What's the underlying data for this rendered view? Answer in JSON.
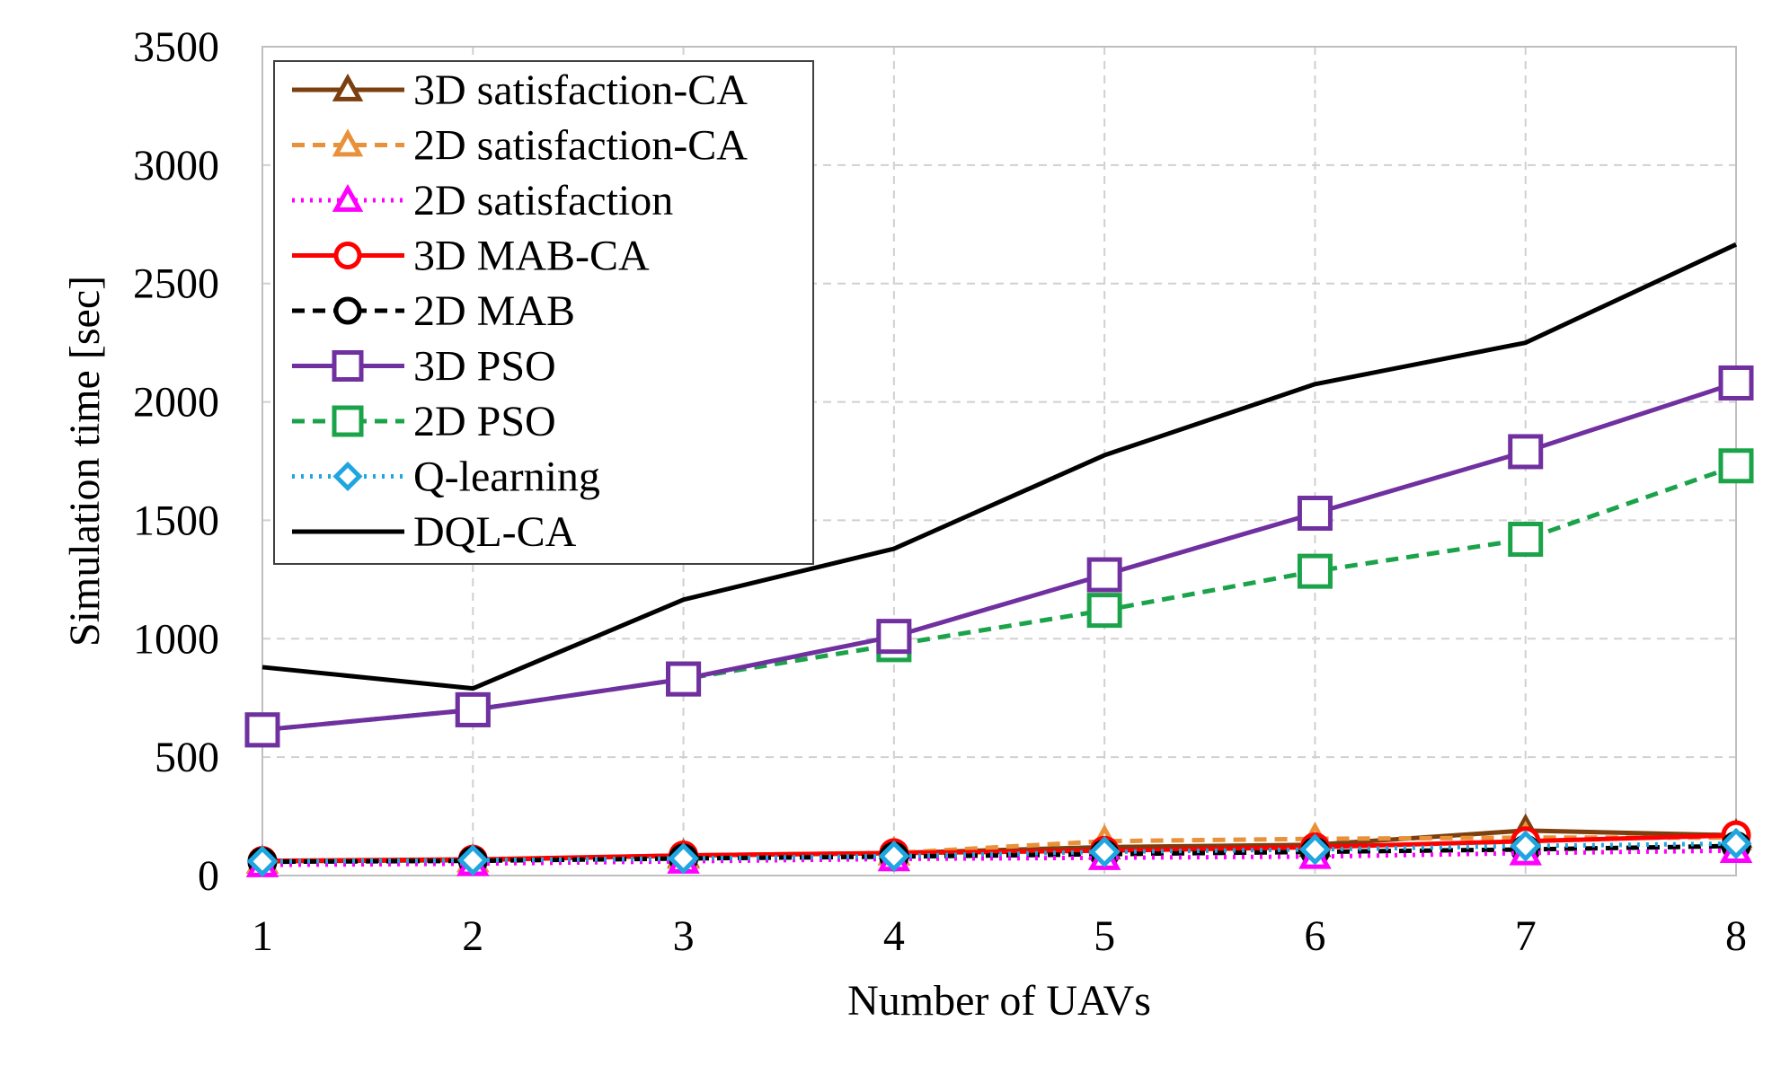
{
  "chart_data": {
    "type": "line",
    "title": "",
    "xlabel": "Number of UAVs",
    "ylabel": "Simulation time [sec]",
    "x": [
      1,
      2,
      3,
      4,
      5,
      6,
      7,
      8
    ],
    "xlim": [
      1,
      8
    ],
    "ylim": [
      0,
      3500
    ],
    "yticks": [
      0,
      500,
      1000,
      1500,
      2000,
      2500,
      3000,
      3500
    ],
    "grid": true,
    "legend_position": "top-left",
    "series": [
      {
        "name": "3D satisfaction-CA",
        "color": "#7B3F10",
        "dash": "solid",
        "marker": "triangle",
        "values": [
          60,
          65,
          85,
          95,
          120,
          130,
          190,
          170
        ]
      },
      {
        "name": "2D satisfaction-CA",
        "color": "#E8913A",
        "dash": "dashed",
        "marker": "triangle",
        "values": [
          60,
          65,
          80,
          95,
          145,
          155,
          160,
          160
        ]
      },
      {
        "name": "2D satisfaction",
        "color": "#FF00FF",
        "dash": "dotted",
        "marker": "triangle",
        "values": [
          45,
          50,
          60,
          70,
          75,
          80,
          95,
          105
        ]
      },
      {
        "name": "3D MAB-CA",
        "color": "#FF0000",
        "dash": "solid",
        "marker": "circle",
        "values": [
          62,
          68,
          85,
          95,
          105,
          120,
          145,
          170
        ]
      },
      {
        "name": "2D MAB",
        "color": "#000000",
        "dash": "dashed",
        "marker": "circle",
        "values": [
          58,
          62,
          72,
          80,
          90,
          100,
          110,
          125
        ]
      },
      {
        "name": "3D PSO",
        "color": "#7030A0",
        "dash": "solid",
        "marker": "square",
        "values": [
          615,
          700,
          830,
          1010,
          1270,
          1530,
          1790,
          2080
        ]
      },
      {
        "name": "2D PSO",
        "color": "#1BA34A",
        "dash": "dashed",
        "marker": "square",
        "values": [
          615,
          700,
          830,
          975,
          1120,
          1285,
          1420,
          1730
        ]
      },
      {
        "name": "Q-learning",
        "color": "#1FA6E0",
        "dash": "dotted",
        "marker": "diamond",
        "values": [
          60,
          65,
          72,
          82,
          100,
          110,
          125,
          135
        ]
      },
      {
        "name": "DQL-CA",
        "color": "#000000",
        "dash": "solid",
        "marker": "none",
        "values": [
          880,
          790,
          1165,
          1380,
          1775,
          2075,
          2250,
          2665
        ]
      }
    ]
  }
}
